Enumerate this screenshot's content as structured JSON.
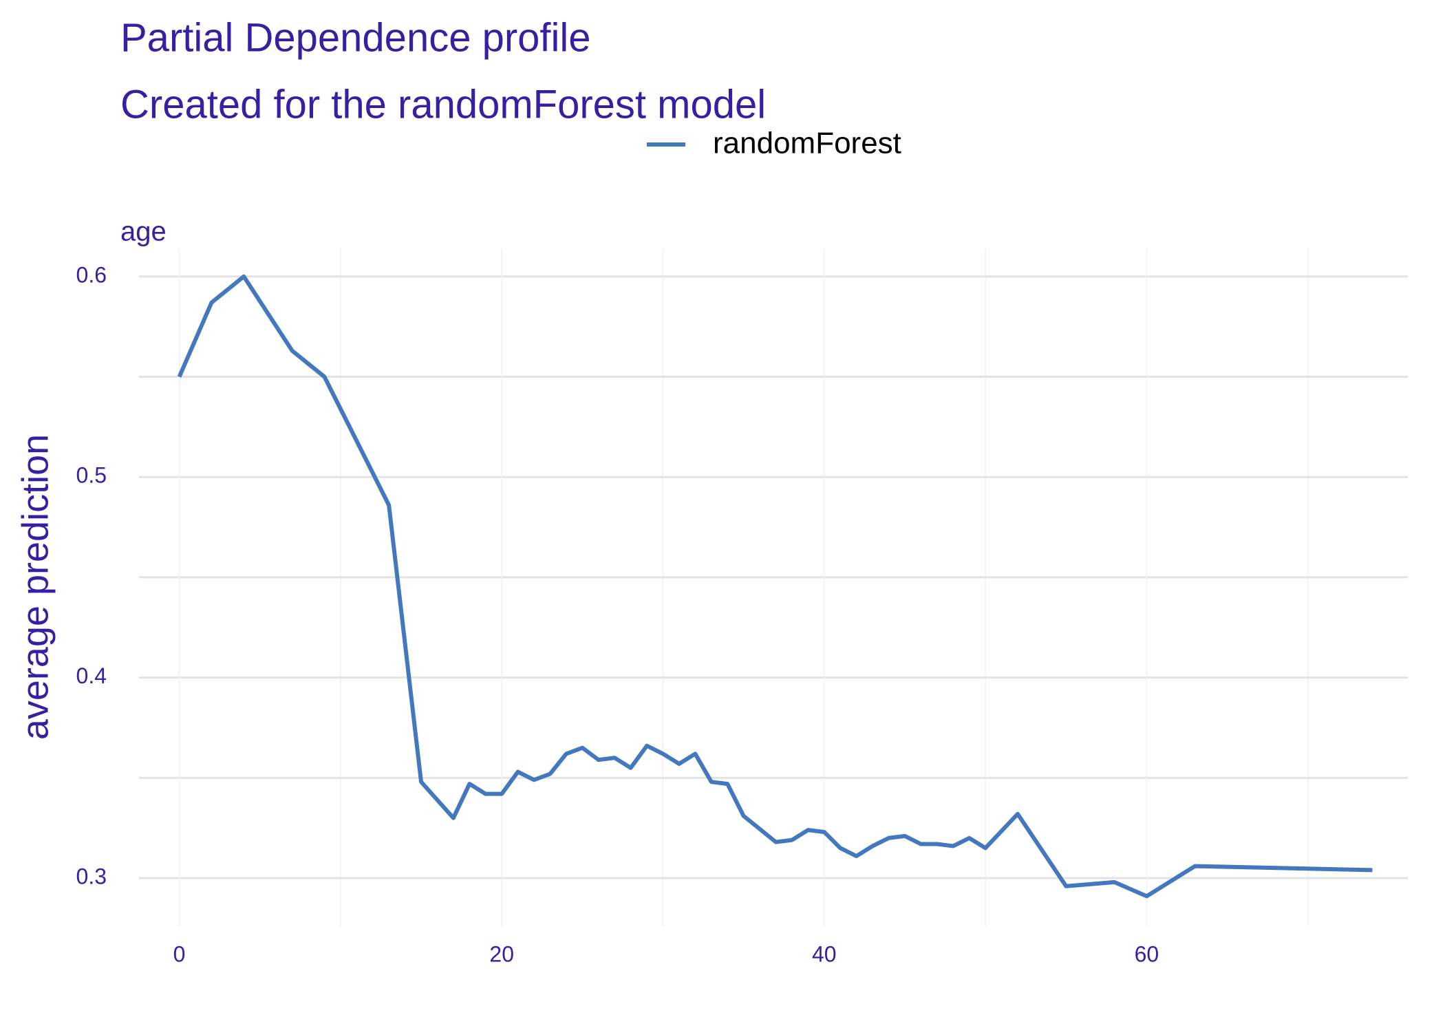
{
  "chart_data": {
    "type": "line",
    "title": "Partial Dependence profile",
    "subtitle": "Created for the randomForest model",
    "panel_label": "age",
    "y_label": "average prediction",
    "x": [
      0,
      2,
      4,
      7,
      9,
      13,
      15,
      17,
      18,
      19,
      20,
      21,
      22,
      23,
      24,
      25,
      26,
      27,
      28,
      29,
      30,
      31,
      32,
      33,
      34,
      35,
      37,
      38,
      39,
      40,
      41,
      42,
      43,
      44,
      45,
      46,
      47,
      48,
      49,
      50,
      52,
      55,
      58,
      60,
      63,
      74
    ],
    "series": [
      {
        "name": "randomForest",
        "color": "#4378bf",
        "values": [
          0.55,
          0.587,
          0.6,
          0.563,
          0.55,
          0.486,
          0.348,
          0.33,
          0.347,
          0.342,
          0.342,
          0.353,
          0.349,
          0.352,
          0.362,
          0.365,
          0.359,
          0.36,
          0.355,
          0.366,
          0.362,
          0.357,
          0.362,
          0.348,
          0.347,
          0.331,
          0.318,
          0.319,
          0.324,
          0.323,
          0.315,
          0.311,
          0.316,
          0.32,
          0.321,
          0.317,
          0.317,
          0.316,
          0.32,
          0.315,
          0.332,
          0.296,
          0.298,
          0.291,
          0.306,
          0.304
        ]
      }
    ],
    "xlim": [
      -2.5,
      76.2
    ],
    "ylim": [
      0.276,
      0.614
    ],
    "xticks": [
      0,
      20,
      40,
      60
    ],
    "yticks": [
      0.3,
      0.4,
      0.5,
      0.6
    ],
    "xminor": [
      10,
      30,
      50,
      70
    ],
    "yminor": [
      0.35,
      0.45,
      0.55
    ],
    "grid": true,
    "legend": "top",
    "text_color": "#371ea3"
  }
}
